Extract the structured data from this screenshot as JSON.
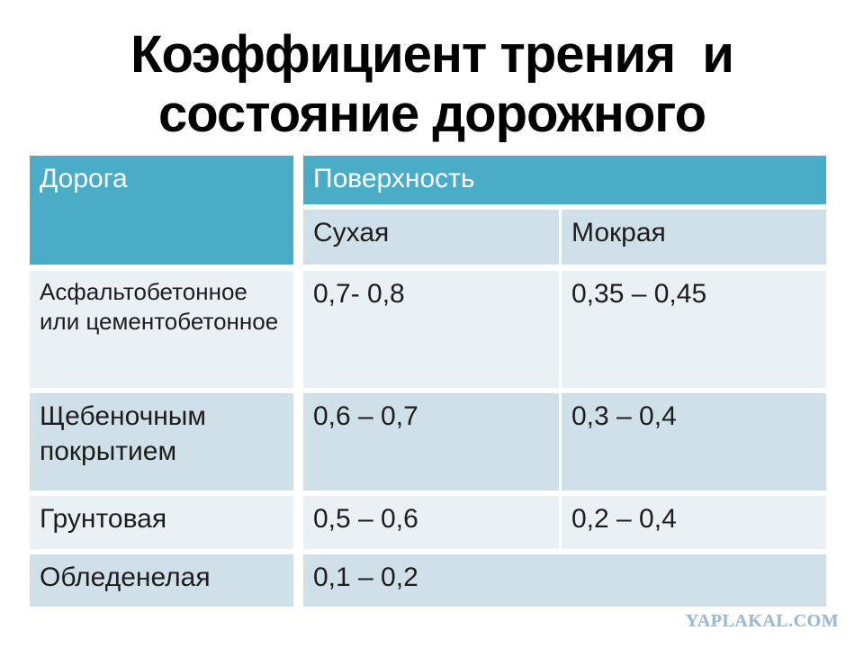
{
  "title": {
    "text": "Коэффициент трения  и\nсостояние дорожного"
  },
  "table": {
    "row_header": "Дорога",
    "column_group_header": "Поверхность",
    "sub_headers": {
      "dry": "Сухая",
      "wet": "Мокрая"
    },
    "rows": [
      {
        "label": "Асфальтобетонное или цементобетонное",
        "dry": "0,7- 0,8",
        "wet": "0,35 – 0,45"
      },
      {
        "label": "Щебеночным покрытием",
        "dry": "0,6 – 0,7",
        "wet": "0,3 – 0,4"
      },
      {
        "label": "Грунтовая",
        "dry": "0,5 – 0,6",
        "wet": "0,2 – 0,4"
      },
      {
        "label": "Обледенелая",
        "dry": "0,1 – 0,2",
        "wet": ""
      }
    ]
  },
  "watermark": "YAPLAKAL.COM",
  "colors": {
    "header_teal": "#4aacc6",
    "header_text": "#ffffff",
    "band_dark": "#cfe0e8",
    "band_light": "#eaf1f4",
    "body_text": "#1d1d1d",
    "title_text": "#000000",
    "watermark_color": "#9cb9d3"
  }
}
